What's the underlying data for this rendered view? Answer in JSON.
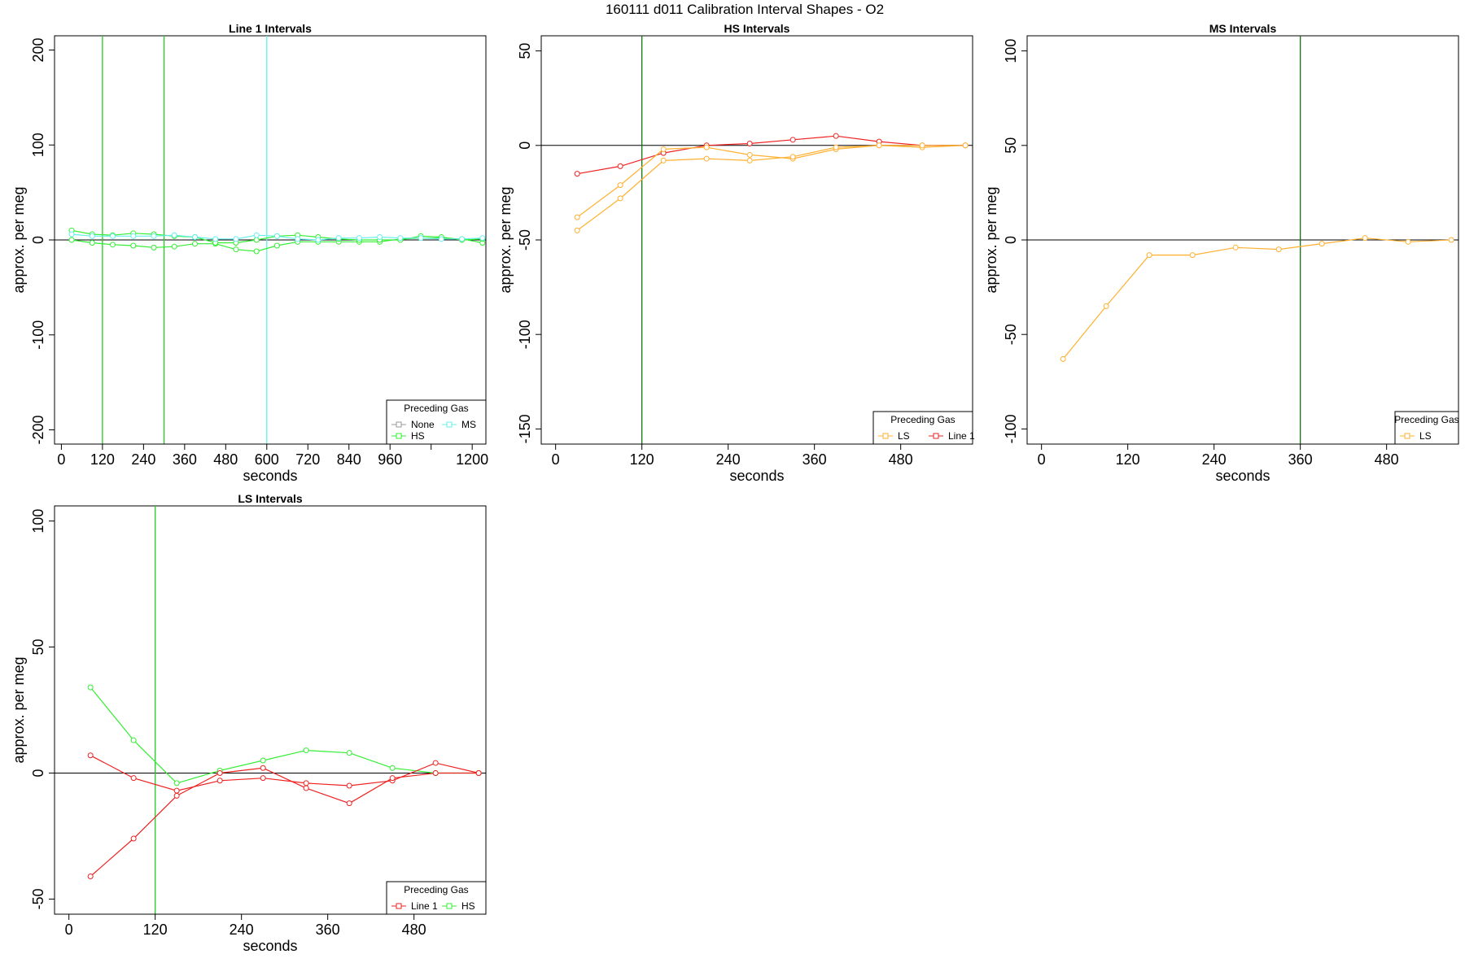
{
  "figure": {
    "title": "160111   d011   Calibration Interval Shapes - O2"
  },
  "colors": {
    "none": "#999999",
    "hs": "#33ee33",
    "ms": "#66eeee",
    "ls": "#ffb030",
    "line1": "#ee2222",
    "vline_green": "#22cc22",
    "vline_dark": "#117711",
    "vline_cyan": "#66eeee"
  },
  "chart_data": [
    {
      "type": "line",
      "title": "Line 1 Intervals",
      "xlabel": "seconds",
      "ylabel": "approx. per meg",
      "xlim": [
        -20,
        1240
      ],
      "ylim": [
        -215,
        215
      ],
      "xticks": [
        0,
        120,
        240,
        360,
        480,
        600,
        720,
        840,
        960,
        1080,
        1200
      ],
      "xtick_labels": [
        "0",
        "120",
        "240",
        "360",
        "480",
        "600",
        "720",
        "840",
        "960",
        "",
        "1200"
      ],
      "yticks": [
        -200,
        -100,
        0,
        100,
        200
      ],
      "ytick_labels": [
        "-200",
        "-100",
        "0",
        "100",
        "200"
      ],
      "hline": 0,
      "vlines": [
        {
          "x": 120,
          "color": "vline_green"
        },
        {
          "x": 300,
          "color": "vline_green"
        },
        {
          "x": 600,
          "color": "vline_cyan"
        }
      ],
      "legend": {
        "title": "Preceding Gas",
        "position": "bottom-right",
        "entries": [
          {
            "label": "None",
            "color": "none"
          },
          {
            "label": "MS",
            "color": "ms"
          },
          {
            "label": "HS",
            "color": "hs"
          }
        ]
      },
      "series": [
        {
          "legend": "HS",
          "color": "hs",
          "x": [
            30,
            90,
            150,
            210,
            270,
            330,
            390,
            450,
            510,
            570,
            630,
            690,
            750,
            810,
            870,
            930,
            990,
            1050,
            1110,
            1170,
            1230
          ],
          "y": [
            0,
            -3,
            -5,
            -6,
            -8,
            -7,
            -4,
            -4,
            -10,
            -12,
            -6,
            -2,
            -2,
            -2,
            -2,
            -2,
            1,
            2,
            2,
            1,
            -3
          ]
        },
        {
          "legend": "HS",
          "color": "hs",
          "x": [
            30,
            90,
            150,
            210,
            270,
            330,
            390,
            450,
            510,
            570,
            630,
            690,
            750,
            810,
            870,
            930,
            990,
            1050,
            1110,
            1170,
            1230
          ],
          "y": [
            10,
            6,
            5,
            7,
            6,
            4,
            3,
            -3,
            -3,
            0,
            4,
            5,
            3,
            1,
            0,
            0,
            0,
            4,
            3,
            0,
            1
          ]
        },
        {
          "legend": "MS",
          "color": "ms",
          "x": [
            30,
            90,
            150,
            210,
            270,
            330,
            390,
            450,
            510,
            570,
            630,
            690,
            750,
            810,
            870,
            930,
            990,
            1050,
            1110,
            1170,
            1230
          ],
          "y": [
            6,
            4,
            4,
            4,
            4,
            5,
            3,
            1,
            1,
            5,
            4,
            1,
            0,
            2,
            2,
            3,
            2,
            2,
            1,
            1,
            2
          ]
        }
      ]
    },
    {
      "type": "line",
      "title": "HS Intervals",
      "xlabel": "seconds",
      "ylabel": "approx. per meg",
      "xlim": [
        -20,
        580
      ],
      "ylim": [
        -158,
        58
      ],
      "xticks": [
        0,
        120,
        240,
        360,
        480
      ],
      "xtick_labels": [
        "0",
        "120",
        "240",
        "360",
        "480"
      ],
      "yticks": [
        -150,
        -100,
        -50,
        0,
        50
      ],
      "ytick_labels": [
        "-150",
        "-100",
        "-50",
        "0",
        "50"
      ],
      "hline": 0,
      "vlines": [
        {
          "x": 120,
          "color": "vline_dark"
        }
      ],
      "legend": {
        "title": "Preceding Gas",
        "position": "bottom-right",
        "entries": [
          {
            "label": "LS",
            "color": "ls"
          },
          {
            "label": "Line 1",
            "color": "line1"
          }
        ]
      },
      "series": [
        {
          "legend": "Line 1",
          "color": "line1",
          "x": [
            30,
            90,
            150,
            210,
            270,
            330,
            390,
            450,
            510,
            570
          ],
          "y": [
            -15,
            -11,
            -4,
            0,
            1,
            3,
            5,
            2,
            0,
            0
          ]
        },
        {
          "legend": "LS",
          "color": "ls",
          "x": [
            30,
            90,
            150,
            210,
            270,
            330,
            390,
            450,
            510,
            570
          ],
          "y": [
            -38,
            -21,
            -2,
            -1,
            -5,
            -7,
            -2,
            0,
            -1,
            0
          ]
        },
        {
          "legend": "LS",
          "color": "ls",
          "x": [
            30,
            90,
            150,
            210,
            270,
            330,
            390,
            450,
            510,
            570
          ],
          "y": [
            -45,
            -28,
            -8,
            -7,
            -8,
            -6,
            -1,
            0,
            0,
            0
          ]
        }
      ]
    },
    {
      "type": "line",
      "title": "MS Intervals",
      "xlabel": "seconds",
      "ylabel": "approx. per meg",
      "xlim": [
        -20,
        580
      ],
      "ylim": [
        -108,
        108
      ],
      "xticks": [
        0,
        120,
        240,
        360,
        480
      ],
      "xtick_labels": [
        "0",
        "120",
        "240",
        "360",
        "480"
      ],
      "yticks": [
        -100,
        -50,
        0,
        50,
        100
      ],
      "ytick_labels": [
        "-100",
        "-50",
        "0",
        "50",
        "100"
      ],
      "hline": 0,
      "vlines": [
        {
          "x": 360,
          "color": "vline_dark"
        }
      ],
      "legend": {
        "title": "Preceding Gas",
        "position": "bottom-right",
        "entries": [
          {
            "label": "LS",
            "color": "ls"
          }
        ]
      },
      "series": [
        {
          "legend": "LS",
          "color": "ls",
          "x": [
            30,
            90,
            150,
            210,
            270,
            330,
            390,
            450,
            510,
            570
          ],
          "y": [
            -63,
            -35,
            -8,
            -8,
            -4,
            -5,
            -2,
            1,
            -1,
            0
          ]
        }
      ]
    },
    {
      "type": "line",
      "title": "LS Intervals",
      "xlabel": "seconds",
      "ylabel": "approx. per meg",
      "xlim": [
        -20,
        580
      ],
      "ylim": [
        -56,
        106
      ],
      "xticks": [
        0,
        120,
        240,
        360,
        480
      ],
      "xtick_labels": [
        "0",
        "120",
        "240",
        "360",
        "480"
      ],
      "yticks": [
        -50,
        0,
        50,
        100
      ],
      "ytick_labels": [
        "-50",
        "0",
        "50",
        "100"
      ],
      "hline": 0,
      "vlines": [
        {
          "x": 120,
          "color": "vline_green"
        }
      ],
      "legend": {
        "title": "Preceding Gas",
        "position": "bottom-right",
        "entries": [
          {
            "label": "Line 1",
            "color": "line1"
          },
          {
            "label": "HS",
            "color": "hs"
          }
        ]
      },
      "series": [
        {
          "legend": "HS",
          "color": "hs",
          "x": [
            30,
            90,
            150,
            210,
            270,
            330,
            390,
            450,
            510,
            570
          ],
          "y": [
            34,
            13,
            -4,
            1,
            5,
            9,
            8,
            2,
            0,
            0
          ]
        },
        {
          "legend": "Line 1",
          "color": "line1",
          "x": [
            30,
            90,
            150,
            210,
            270,
            330,
            390,
            450,
            510,
            570
          ],
          "y": [
            7,
            -2,
            -7,
            -3,
            -2,
            -4,
            -5,
            -3,
            4,
            0
          ]
        },
        {
          "legend": "Line 1",
          "color": "line1",
          "x": [
            30,
            90,
            150,
            210,
            270,
            330,
            390,
            450,
            510,
            570
          ],
          "y": [
            -41,
            -26,
            -9,
            0,
            2,
            -6,
            -12,
            -2,
            0,
            0
          ]
        }
      ]
    }
  ]
}
